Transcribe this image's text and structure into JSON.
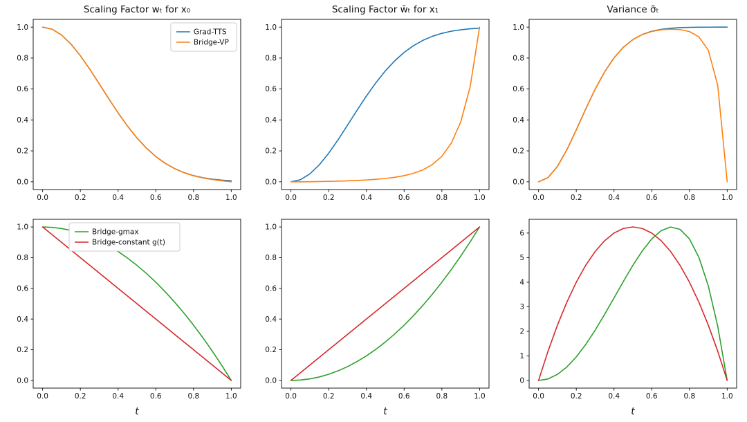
{
  "figure": {
    "background": "#ffffff"
  },
  "colors": {
    "grad_tts": "#1f77b4",
    "bridge_vp": "#ff7f0e",
    "bridge_gmax": "#2ca02c",
    "bridge_constant": "#d62728"
  },
  "chart_data": [
    {
      "id": "scaling-w-x0",
      "type": "line",
      "title": "Scaling Factor wₜ for x₀",
      "xlabel": "",
      "xlim": [
        -0.05,
        1.05
      ],
      "ylim": [
        -0.05,
        1.05
      ],
      "xticks": [
        0.0,
        0.2,
        0.4,
        0.6,
        0.8,
        1.0
      ],
      "xtick_labels": [
        "0.0",
        "0.2",
        "0.4",
        "0.6",
        "0.8",
        "1.0"
      ],
      "yticks": [
        0.0,
        0.2,
        0.4,
        0.6,
        0.8,
        1.0
      ],
      "ytick_labels": [
        "0.0",
        "0.2",
        "0.4",
        "0.6",
        "0.8",
        "1.0"
      ],
      "x": [
        0,
        0.05,
        0.1,
        0.15,
        0.2,
        0.25,
        0.3,
        0.35,
        0.4,
        0.45,
        0.5,
        0.55,
        0.6,
        0.65,
        0.7,
        0.75,
        0.8,
        0.85,
        0.9,
        0.95,
        1
      ],
      "series": [
        {
          "name": "Grad-TTS",
          "color": "#1f77b4",
          "values": [
            1,
            0.9864,
            0.949,
            0.8905,
            0.8151,
            0.7276,
            0.6336,
            0.5381,
            0.4457,
            0.3601,
            0.2838,
            0.2182,
            0.1636,
            0.1196,
            0.0853,
            0.0593,
            0.0402,
            0.0266,
            0.0172,
            0.0108,
            0.0066
          ]
        },
        {
          "name": "Bridge-VP",
          "color": "#ff7f0e",
          "values": [
            1,
            0.9864,
            0.949,
            0.8905,
            0.8151,
            0.7276,
            0.6335,
            0.538,
            0.4456,
            0.36,
            0.2837,
            0.218,
            0.1633,
            0.1191,
            0.0848,
            0.0586,
            0.0391,
            0.0249,
            0.0146,
            0.0067,
            0
          ]
        }
      ],
      "legend": {
        "show": true,
        "position": "top-right"
      }
    },
    {
      "id": "scaling-wbar-x1",
      "type": "line",
      "title": "Scaling Factor w̄ₜ for x₁",
      "xlabel": "",
      "xlim": [
        -0.05,
        1.05
      ],
      "ylim": [
        -0.05,
        1.05
      ],
      "xticks": [
        0.0,
        0.2,
        0.4,
        0.6,
        0.8,
        1.0
      ],
      "xtick_labels": [
        "0.0",
        "0.2",
        "0.4",
        "0.6",
        "0.8",
        "1.0"
      ],
      "yticks": [
        0.0,
        0.2,
        0.4,
        0.6,
        0.8,
        1.0
      ],
      "ytick_labels": [
        "0.0",
        "0.2",
        "0.4",
        "0.6",
        "0.8",
        "1.0"
      ],
      "x": [
        0,
        0.05,
        0.1,
        0.15,
        0.2,
        0.25,
        0.3,
        0.35,
        0.4,
        0.45,
        0.5,
        0.55,
        0.6,
        0.65,
        0.7,
        0.75,
        0.8,
        0.85,
        0.9,
        0.95,
        1
      ],
      "series": [
        {
          "name": "Grad-TTS",
          "color": "#1f77b4",
          "values": [
            0,
            0.0136,
            0.051,
            0.1095,
            0.1849,
            0.2724,
            0.3664,
            0.4619,
            0.5543,
            0.6399,
            0.7162,
            0.7818,
            0.8364,
            0.8804,
            0.9147,
            0.9407,
            0.9598,
            0.9734,
            0.9828,
            0.9892,
            0.9934
          ]
        },
        {
          "name": "Bridge-VP",
          "color": "#ff7f0e",
          "values": [
            0,
            0.0002,
            0.0007,
            0.0015,
            0.0027,
            0.0043,
            0.0063,
            0.0088,
            0.012,
            0.0161,
            0.0215,
            0.0291,
            0.0396,
            0.0551,
            0.0775,
            0.1119,
            0.1649,
            0.2497,
            0.3866,
            0.6141,
            1
          ]
        }
      ],
      "legend": {
        "show": false,
        "position": "top-right"
      }
    },
    {
      "id": "variance-vp",
      "type": "line",
      "title": "Variance σ̃ₜ",
      "xlabel": "",
      "xlim": [
        -0.05,
        1.05
      ],
      "ylim": [
        -0.05,
        1.05
      ],
      "xticks": [
        0.0,
        0.2,
        0.4,
        0.6,
        0.8,
        1.0
      ],
      "xtick_labels": [
        "0.0",
        "0.2",
        "0.4",
        "0.6",
        "0.8",
        "1.0"
      ],
      "yticks": [
        0.0,
        0.2,
        0.4,
        0.6,
        0.8,
        1.0
      ],
      "ytick_labels": [
        "0.0",
        "0.2",
        "0.4",
        "0.6",
        "0.8",
        "1.0"
      ],
      "x": [
        0,
        0.05,
        0.1,
        0.15,
        0.2,
        0.25,
        0.3,
        0.35,
        0.4,
        0.45,
        0.5,
        0.55,
        0.6,
        0.65,
        0.7,
        0.75,
        0.8,
        0.85,
        0.9,
        0.95,
        1
      ],
      "series": [
        {
          "name": "Grad-TTS",
          "color": "#1f77b4",
          "values": [
            0,
            0.0271,
            0.0995,
            0.207,
            0.3357,
            0.4706,
            0.5986,
            0.7104,
            0.8013,
            0.8703,
            0.9194,
            0.9525,
            0.9733,
            0.9857,
            0.9927,
            0.9965,
            0.9984,
            0.9993,
            0.9997,
            0.9999,
            1
          ]
        },
        {
          "name": "Bridge-VP",
          "color": "#ff7f0e",
          "values": [
            0,
            0.0271,
            0.0995,
            0.207,
            0.3357,
            0.4706,
            0.5985,
            0.7103,
            0.8012,
            0.8701,
            0.9189,
            0.9517,
            0.9717,
            0.9827,
            0.9867,
            0.984,
            0.9712,
            0.937,
            0.8502,
            0.6228,
            0
          ]
        }
      ],
      "legend": {
        "show": false,
        "position": "top-right"
      }
    },
    {
      "id": "scaling-w-x0-bridges",
      "type": "line",
      "title": "",
      "xlabel": "t",
      "xlim": [
        -0.05,
        1.05
      ],
      "ylim": [
        -0.05,
        1.05
      ],
      "xticks": [
        0.0,
        0.2,
        0.4,
        0.6,
        0.8,
        1.0
      ],
      "xtick_labels": [
        "0.0",
        "0.2",
        "0.4",
        "0.6",
        "0.8",
        "1.0"
      ],
      "yticks": [
        0.0,
        0.2,
        0.4,
        0.6,
        0.8,
        1.0
      ],
      "ytick_labels": [
        "0.0",
        "0.2",
        "0.4",
        "0.6",
        "0.8",
        "1.0"
      ],
      "x": [
        0,
        0.05,
        0.1,
        0.15,
        0.2,
        0.25,
        0.3,
        0.35,
        0.4,
        0.45,
        0.5,
        0.55,
        0.6,
        0.65,
        0.7,
        0.75,
        0.8,
        0.85,
        0.9,
        0.95,
        1
      ],
      "series": [
        {
          "name": "Bridge-gmax",
          "color": "#2ca02c",
          "values": [
            1,
            0.9975,
            0.99,
            0.9775,
            0.96,
            0.9375,
            0.91,
            0.8775,
            0.84,
            0.7975,
            0.75,
            0.6975,
            0.64,
            0.5775,
            0.51,
            0.4375,
            0.36,
            0.2775,
            0.19,
            0.0975,
            0
          ]
        },
        {
          "name": "Bridge-constant g(t)",
          "color": "#d62728",
          "values": [
            1,
            0.95,
            0.9,
            0.85,
            0.8,
            0.75,
            0.7,
            0.65,
            0.6,
            0.55,
            0.5,
            0.45,
            0.4,
            0.35,
            0.3,
            0.25,
            0.2,
            0.15,
            0.1,
            0.05,
            0
          ]
        }
      ],
      "legend": {
        "show": true,
        "position": "top-center"
      }
    },
    {
      "id": "scaling-wbar-x1-bridges",
      "type": "line",
      "title": "",
      "xlabel": "t",
      "xlim": [
        -0.05,
        1.05
      ],
      "ylim": [
        -0.05,
        1.05
      ],
      "xticks": [
        0.0,
        0.2,
        0.4,
        0.6,
        0.8,
        1.0
      ],
      "xtick_labels": [
        "0.0",
        "0.2",
        "0.4",
        "0.6",
        "0.8",
        "1.0"
      ],
      "yticks": [
        0.0,
        0.2,
        0.4,
        0.6,
        0.8,
        1.0
      ],
      "ytick_labels": [
        "0.0",
        "0.2",
        "0.4",
        "0.6",
        "0.8",
        "1.0"
      ],
      "x": [
        0,
        0.05,
        0.1,
        0.15,
        0.2,
        0.25,
        0.3,
        0.35,
        0.4,
        0.45,
        0.5,
        0.55,
        0.6,
        0.65,
        0.7,
        0.75,
        0.8,
        0.85,
        0.9,
        0.95,
        1
      ],
      "series": [
        {
          "name": "Bridge-gmax",
          "color": "#2ca02c",
          "values": [
            0,
            0.0025,
            0.01,
            0.0225,
            0.04,
            0.0625,
            0.09,
            0.1225,
            0.16,
            0.2025,
            0.25,
            0.3025,
            0.36,
            0.4225,
            0.49,
            0.5625,
            0.64,
            0.7225,
            0.81,
            0.9025,
            1
          ]
        },
        {
          "name": "Bridge-constant g(t)",
          "color": "#d62728",
          "values": [
            0,
            0.05,
            0.1,
            0.15,
            0.2,
            0.25,
            0.3,
            0.35,
            0.4,
            0.45,
            0.5,
            0.55,
            0.6,
            0.65,
            0.7,
            0.75,
            0.8,
            0.85,
            0.9,
            0.95,
            1
          ]
        }
      ],
      "legend": {
        "show": false,
        "position": "top-center"
      }
    },
    {
      "id": "variance-bridges",
      "type": "line",
      "title": "",
      "xlabel": "t",
      "xlim": [
        -0.05,
        1.05
      ],
      "ylim": [
        -0.31,
        6.56
      ],
      "xticks": [
        0.0,
        0.2,
        0.4,
        0.6,
        0.8,
        1.0
      ],
      "xtick_labels": [
        "0.0",
        "0.2",
        "0.4",
        "0.6",
        "0.8",
        "1.0"
      ],
      "yticks": [
        0,
        1,
        2,
        3,
        4,
        5,
        6
      ],
      "ytick_labels": [
        "0",
        "1",
        "2",
        "3",
        "4",
        "5",
        "6"
      ],
      "x": [
        0,
        0.05,
        0.1,
        0.15,
        0.2,
        0.25,
        0.3,
        0.35,
        0.4,
        0.45,
        0.5,
        0.55,
        0.6,
        0.65,
        0.7,
        0.75,
        0.8,
        0.85,
        0.9,
        0.95,
        1
      ],
      "series": [
        {
          "name": "Bridge-gmax",
          "color": "#2ca02c",
          "values": [
            0,
            0.0623,
            0.2475,
            0.5498,
            0.96,
            1.4648,
            2.0475,
            2.6873,
            3.36,
            4.0373,
            4.6875,
            5.2748,
            5.76,
            6.0998,
            6.2475,
            6.1523,
            5.76,
            5.0123,
            3.8475,
            2.1998,
            0
          ]
        },
        {
          "name": "Bridge-constant g(t)",
          "color": "#d62728",
          "values": [
            0,
            1.1875,
            2.25,
            3.1875,
            4,
            4.6875,
            5.25,
            5.6875,
            6,
            6.1875,
            6.25,
            6.1875,
            6,
            5.6875,
            5.25,
            4.6875,
            4,
            3.1875,
            2.25,
            1.1875,
            0
          ]
        }
      ],
      "legend": {
        "show": false,
        "position": "top-center"
      }
    }
  ]
}
